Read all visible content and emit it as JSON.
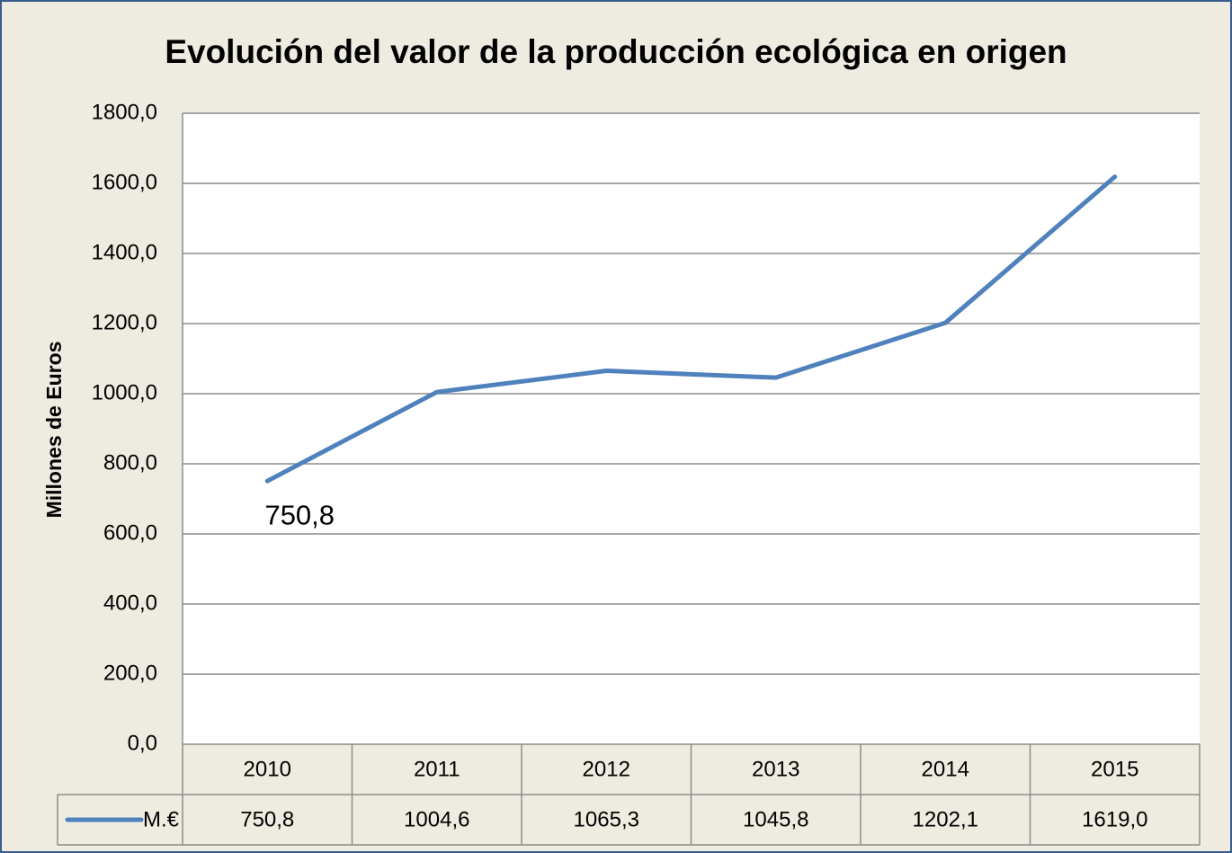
{
  "chart_data": {
    "type": "line",
    "title": "Evolución del valor de la producción ecológica en origen",
    "y_label": "Millones de Euros",
    "categories": [
      "2010",
      "2011",
      "2012",
      "2013",
      "2014",
      "2015"
    ],
    "series": [
      {
        "name": "M.€",
        "color": "#4f81bd",
        "values": [
          750.8,
          1004.6,
          1065.3,
          1045.8,
          1202.1,
          1619.0
        ],
        "value_labels": [
          "750,8",
          "1004,6",
          "1065,3",
          "1045,8",
          "1202,1",
          "1619,0"
        ]
      }
    ],
    "ylim": [
      0,
      1800
    ],
    "yticks": [
      {
        "value": 0,
        "label": "0,0"
      },
      {
        "value": 200,
        "label": "200,0"
      },
      {
        "value": 400,
        "label": "400,0"
      },
      {
        "value": 600,
        "label": "600,0"
      },
      {
        "value": 800,
        "label": "800,0"
      },
      {
        "value": 1000,
        "label": "1000,0"
      },
      {
        "value": 1200,
        "label": "1200,0"
      },
      {
        "value": 1400,
        "label": "1400,0"
      },
      {
        "value": 1600,
        "label": "1600,0"
      },
      {
        "value": 1800,
        "label": "1800,0"
      }
    ],
    "grid": true
  }
}
